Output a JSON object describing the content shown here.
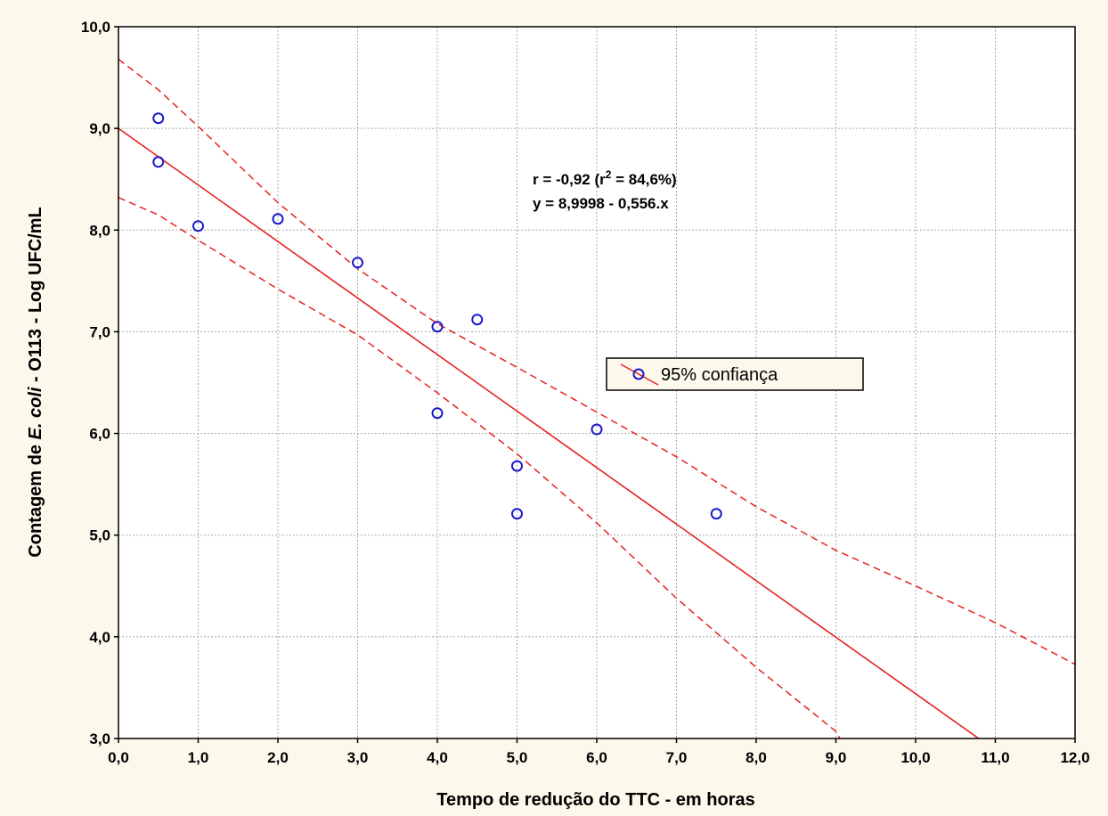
{
  "chart_data": {
    "type": "scatter",
    "xlabel": "Tempo de redução do TTC - em horas",
    "ylabel": {
      "prefix": "Contagem de ",
      "italic": "E. coli",
      "suffix": " - O113 - Log UFC/mL"
    },
    "xlim": [
      0,
      12
    ],
    "ylim": [
      3,
      10
    ],
    "xticks": [
      "0,0",
      "1,0",
      "2,0",
      "3,0",
      "4,0",
      "5,0",
      "6,0",
      "7,0",
      "8,0",
      "9,0",
      "10,0",
      "11,0",
      "12,0"
    ],
    "yticks": [
      "3,0",
      "4,0",
      "5,0",
      "6,0",
      "7,0",
      "8,0",
      "9,0",
      "10,0"
    ],
    "grid": true,
    "points": [
      {
        "x": 0.5,
        "y": 9.1
      },
      {
        "x": 0.5,
        "y": 8.67
      },
      {
        "x": 1.0,
        "y": 8.04
      },
      {
        "x": 2.0,
        "y": 8.11
      },
      {
        "x": 3.0,
        "y": 7.68
      },
      {
        "x": 4.0,
        "y": 7.05
      },
      {
        "x": 4.0,
        "y": 6.2
      },
      {
        "x": 4.5,
        "y": 7.12
      },
      {
        "x": 5.0,
        "y": 5.68
      },
      {
        "x": 5.0,
        "y": 5.21
      },
      {
        "x": 6.0,
        "y": 6.04
      },
      {
        "x": 7.5,
        "y": 5.21
      }
    ],
    "regression": {
      "intercept": 8.9998,
      "slope": -0.556
    },
    "confidence_band": {
      "upper": [
        [
          0,
          9.68
        ],
        [
          0.5,
          9.38
        ],
        [
          1,
          9.02
        ],
        [
          2,
          8.27
        ],
        [
          3,
          7.62
        ],
        [
          4,
          7.08
        ],
        [
          5,
          6.65
        ],
        [
          6,
          6.21
        ],
        [
          7,
          5.77
        ],
        [
          8,
          5.28
        ],
        [
          9,
          4.85
        ],
        [
          10,
          4.5
        ],
        [
          11,
          4.14
        ],
        [
          12,
          3.73
        ]
      ],
      "lower": [
        [
          0,
          8.32
        ],
        [
          0.5,
          8.15
        ],
        [
          1,
          7.9
        ],
        [
          2,
          7.42
        ],
        [
          3,
          6.97
        ],
        [
          4,
          6.4
        ],
        [
          5,
          5.8
        ],
        [
          6,
          5.12
        ],
        [
          7,
          4.38
        ],
        [
          8,
          3.7
        ],
        [
          9,
          3.07
        ],
        [
          9.05,
          3.0
        ]
      ]
    },
    "annotation": {
      "r_prefix": "r = -0,92 (r",
      "r_sup": "2",
      "r_suffix": " = 84,6%)",
      "equation": "y = 8,9998 - 0,556.x"
    },
    "legend": {
      "label": "95% confiança",
      "position": "center-right"
    },
    "colors": {
      "line": "#e52222",
      "marker": "#1a1acc",
      "grid": "#a8a8a8",
      "plot_bg": "#ffffff",
      "page_bg": "#fdf8ec",
      "legend_bg": "#fdf8ec"
    }
  }
}
